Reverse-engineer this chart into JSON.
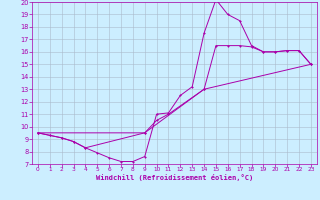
{
  "xlabel": "Windchill (Refroidissement éolien,°C)",
  "xlim": [
    -0.5,
    23.5
  ],
  "ylim": [
    7,
    20
  ],
  "xticks": [
    0,
    1,
    2,
    3,
    4,
    5,
    6,
    7,
    8,
    9,
    10,
    11,
    12,
    13,
    14,
    15,
    16,
    17,
    18,
    19,
    20,
    21,
    22,
    23
  ],
  "yticks": [
    7,
    8,
    9,
    10,
    11,
    12,
    13,
    14,
    15,
    16,
    17,
    18,
    19,
    20
  ],
  "bg_color": "#cceeff",
  "line_color": "#aa00aa",
  "grid_color": "#aabbcc",
  "line1_x": [
    0,
    1,
    2,
    3,
    4,
    5,
    6,
    7,
    8,
    9,
    10,
    11,
    12,
    13,
    14,
    15,
    16,
    17,
    18,
    19,
    20,
    21,
    22,
    23
  ],
  "line1_y": [
    9.5,
    9.3,
    9.1,
    8.8,
    8.3,
    7.9,
    7.5,
    7.2,
    7.2,
    7.6,
    11.0,
    11.1,
    12.5,
    13.2,
    17.5,
    20.2,
    19.0,
    18.5,
    16.5,
    16.0,
    16.0,
    16.1,
    16.1,
    15.0
  ],
  "line2_x": [
    0,
    1,
    2,
    3,
    4,
    9,
    10,
    11,
    14,
    15,
    16,
    17,
    18,
    19,
    20,
    21,
    22,
    23
  ],
  "line2_y": [
    9.5,
    9.3,
    9.1,
    8.8,
    8.3,
    9.5,
    10.5,
    11.0,
    13.0,
    16.5,
    16.5,
    16.5,
    16.4,
    16.0,
    16.0,
    16.1,
    16.1,
    15.0
  ],
  "line3_x": [
    0,
    9,
    14,
    23
  ],
  "line3_y": [
    9.5,
    9.5,
    13.0,
    15.0
  ]
}
